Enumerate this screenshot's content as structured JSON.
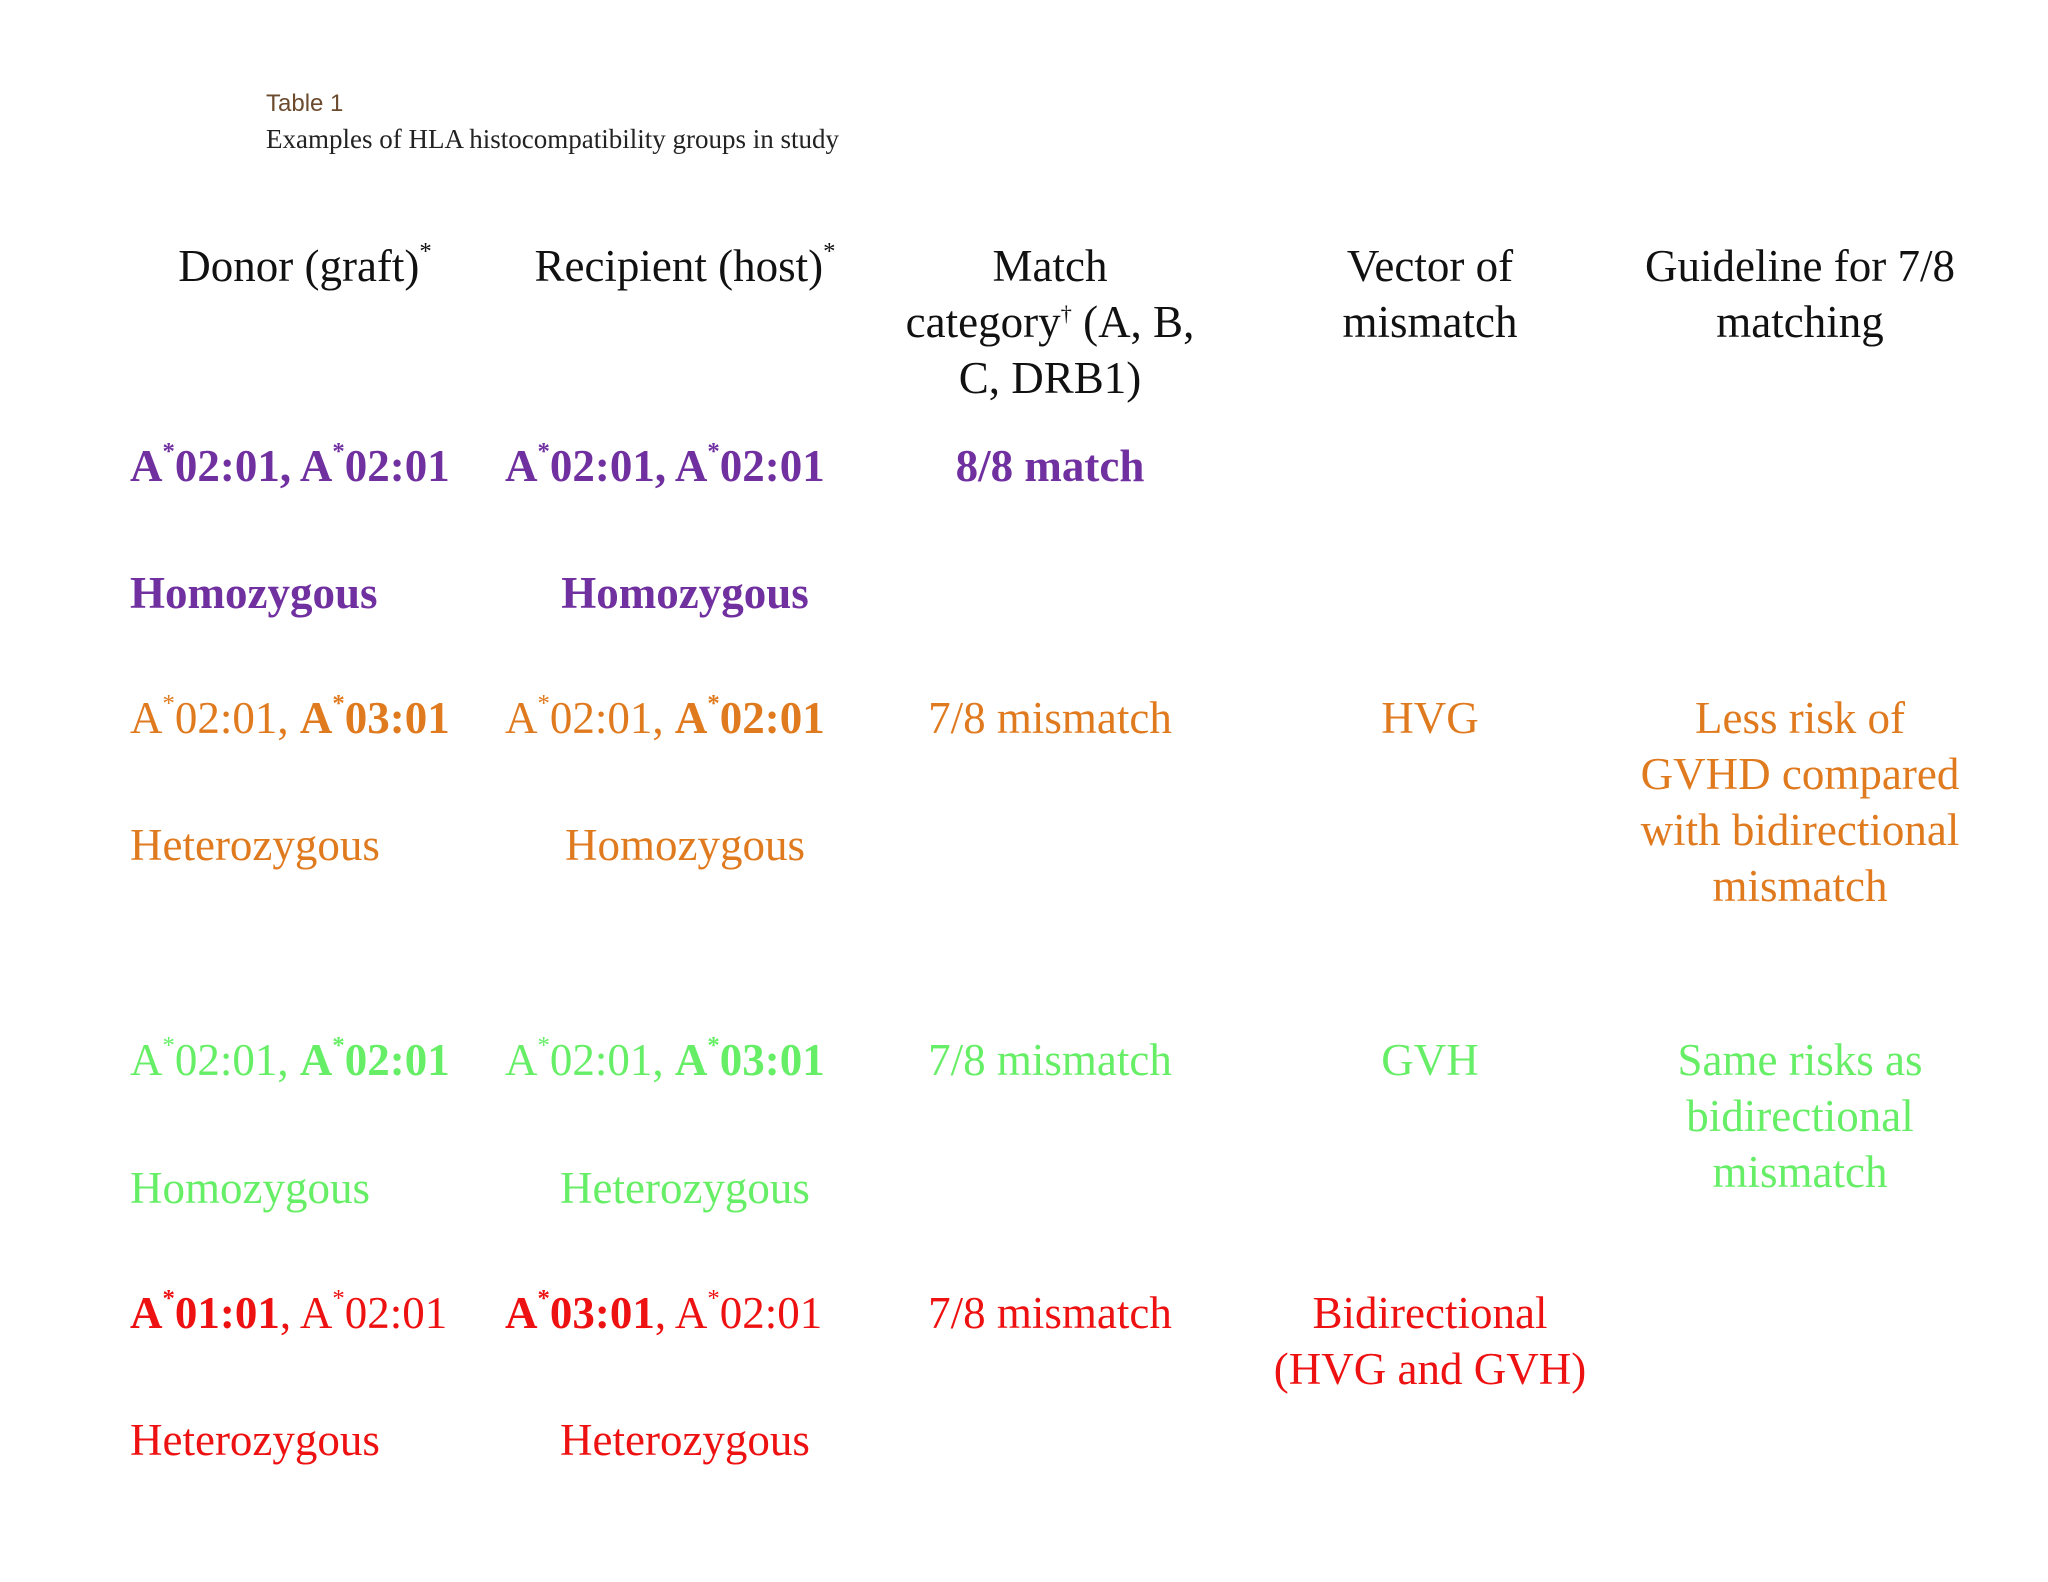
{
  "caption": {
    "label": "Table 1",
    "title": "Examples of HLA histocompatibility groups in study"
  },
  "headers": {
    "donor": "Donor (graft)",
    "donor_sup": "*",
    "recipient": "Recipient (host)",
    "recipient_sup": "*",
    "match_1": "Match",
    "match_2a": "category",
    "match_sup": "†",
    "match_2b": " (A, B,",
    "match_3": "C, DRB1)",
    "vector_1": "Vector of",
    "vector_2": "mismatch",
    "guideline_1": "Guideline for 7/8",
    "guideline_2": "matching"
  },
  "colors": {
    "row1": "#7030a0",
    "row2": "#e07a1f",
    "row3": "#66ee66",
    "row4": "#ee1111"
  },
  "rows": [
    {
      "donor_a1": "A",
      "donor_s1": "*",
      "donor_v1": "02:01, ",
      "donor_a2": "A",
      "donor_s2": "*",
      "donor_v2": "02:01",
      "donor_zyg": "Homozygous",
      "recip_a1": "A",
      "recip_s1": "*",
      "recip_v1": "02:01, ",
      "recip_a2": "A",
      "recip_s2": "*",
      "recip_v2": "02:01",
      "recip_zyg": "Homozygous",
      "match": "8/8 match",
      "vector": "",
      "guideline": []
    },
    {
      "donor_a1": "A",
      "donor_s1": "*",
      "donor_v1": "02:01, ",
      "donor_a2": "A",
      "donor_s2": "*",
      "donor_v2": "03:01",
      "donor_zyg": "Heterozygous",
      "recip_a1": "A",
      "recip_s1": "*",
      "recip_v1": "02:01, ",
      "recip_a2": "A",
      "recip_s2": "*",
      "recip_v2": "02:01",
      "recip_zyg": "Homozygous",
      "match": "7/8 mismatch",
      "vector": "HVG",
      "guideline": [
        "Less risk of",
        "GVHD compared",
        "with bidirectional",
        "mismatch"
      ]
    },
    {
      "donor_a1": "A",
      "donor_s1": "*",
      "donor_v1": "02:01, ",
      "donor_a2": "A",
      "donor_s2": "*",
      "donor_v2": "02:01",
      "donor_zyg": "Homozygous",
      "recip_a1": "A",
      "recip_s1": "*",
      "recip_v1": "02:01, ",
      "recip_a2": "A",
      "recip_s2": "*",
      "recip_v2": "03:01",
      "recip_zyg": "Heterozygous",
      "match": "7/8 mismatch",
      "vector": "GVH",
      "guideline": [
        "Same risks as",
        "bidirectional",
        "mismatch"
      ]
    },
    {
      "donor_a1": "A",
      "donor_s1": "*",
      "donor_v1": "01:01",
      "donor_sep": ", ",
      "donor_a2": "A",
      "donor_s2": "*",
      "donor_v2": "02:01",
      "donor_zyg": "Heterozygous",
      "recip_a1": "A",
      "recip_s1": "*",
      "recip_v1": "03:01",
      "recip_sep": ", ",
      "recip_a2": "A",
      "recip_s2": "*",
      "recip_v2": "02:01",
      "recip_zyg": "Heterozygous",
      "match": "7/8 mismatch",
      "vector_1": "Bidirectional",
      "vector_2": "(HVG and GVH)"
    }
  ]
}
